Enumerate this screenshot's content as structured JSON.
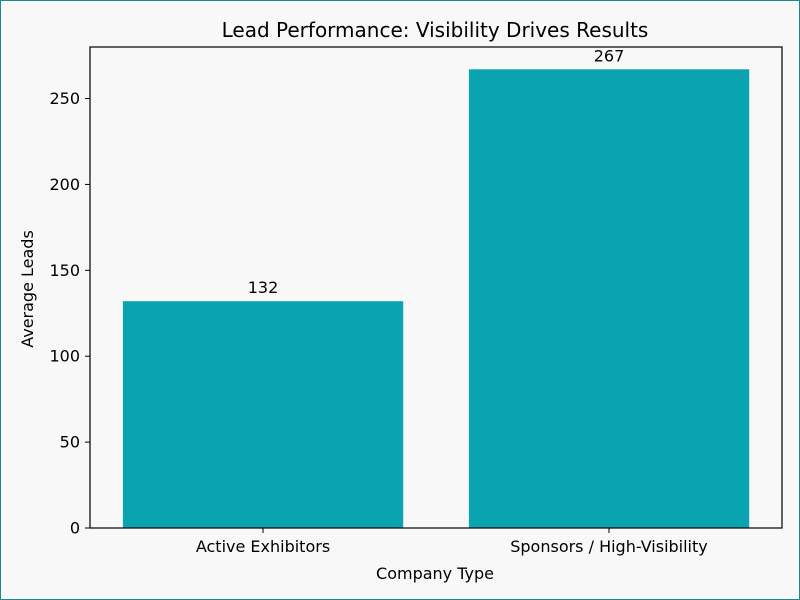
{
  "chart_data": {
    "type": "bar",
    "title": "Lead Performance: Visibility Drives Results",
    "xlabel": "Company Type",
    "ylabel": "Average Leads",
    "categories": [
      "Active Exhibitors",
      "Sponsors / High-Visibility"
    ],
    "values": [
      132,
      267
    ],
    "data_labels": [
      "132",
      "267"
    ],
    "ylim": [
      0,
      280
    ],
    "yticks": [
      0,
      50,
      100,
      150,
      200,
      250
    ],
    "bar_color": "#0aa3b0",
    "grid": false,
    "legend": "none"
  }
}
